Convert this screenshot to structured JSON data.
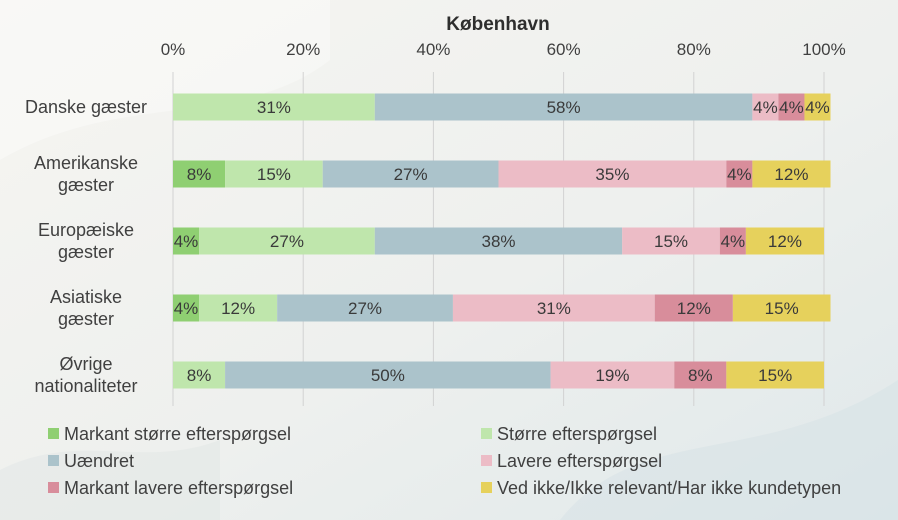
{
  "chart_data": {
    "type": "bar",
    "orientation": "horizontal",
    "stacked": true,
    "title": "København",
    "xlim": [
      0,
      100
    ],
    "x_ticks": [
      "0%",
      "20%",
      "40%",
      "60%",
      "80%",
      "100%"
    ],
    "grid": "vertical",
    "legend_position": "bottom",
    "categories": [
      [
        "Danske gæster"
      ],
      [
        "Amerikanske",
        "gæster"
      ],
      [
        "Europæiske",
        "gæster"
      ],
      [
        "Asiatiske",
        "gæster"
      ],
      [
        "Øvrige",
        "nationaliteter"
      ]
    ],
    "series": [
      {
        "name": "Markant større efterspørgsel",
        "color": "#8fcf72",
        "values": [
          0,
          8,
          4,
          4,
          0
        ]
      },
      {
        "name": "Større efterspørgsel",
        "color": "#bfe6ac",
        "values": [
          31,
          15,
          27,
          12,
          8
        ]
      },
      {
        "name": "Uændret",
        "color": "#abc3cb",
        "values": [
          58,
          27,
          38,
          27,
          50
        ]
      },
      {
        "name": "Lavere efterspørgsel",
        "color": "#ecbcc6",
        "values": [
          4,
          35,
          15,
          31,
          19
        ]
      },
      {
        "name": "Markant lavere efterspørgsel",
        "color": "#d88d9b",
        "values": [
          4,
          4,
          4,
          12,
          8
        ]
      },
      {
        "name": "Ved ikke/Ikke relevant/Har ikke kundetypen",
        "color": "#e6d15c",
        "values": [
          4,
          12,
          12,
          15,
          15
        ]
      }
    ],
    "value_labels": [
      [
        "",
        "31%",
        "58%",
        "4%",
        "4%",
        "4%"
      ],
      [
        "8%",
        "15%",
        "27%",
        "35%",
        "4%",
        "12%"
      ],
      [
        "4%",
        "27%",
        "38%",
        "15%",
        "4%",
        "12%"
      ],
      [
        "4%",
        "12%",
        "27%",
        "31%",
        "12%",
        "15%"
      ],
      [
        "",
        "8%",
        "50%",
        "19%",
        "8%",
        "15%"
      ]
    ]
  }
}
